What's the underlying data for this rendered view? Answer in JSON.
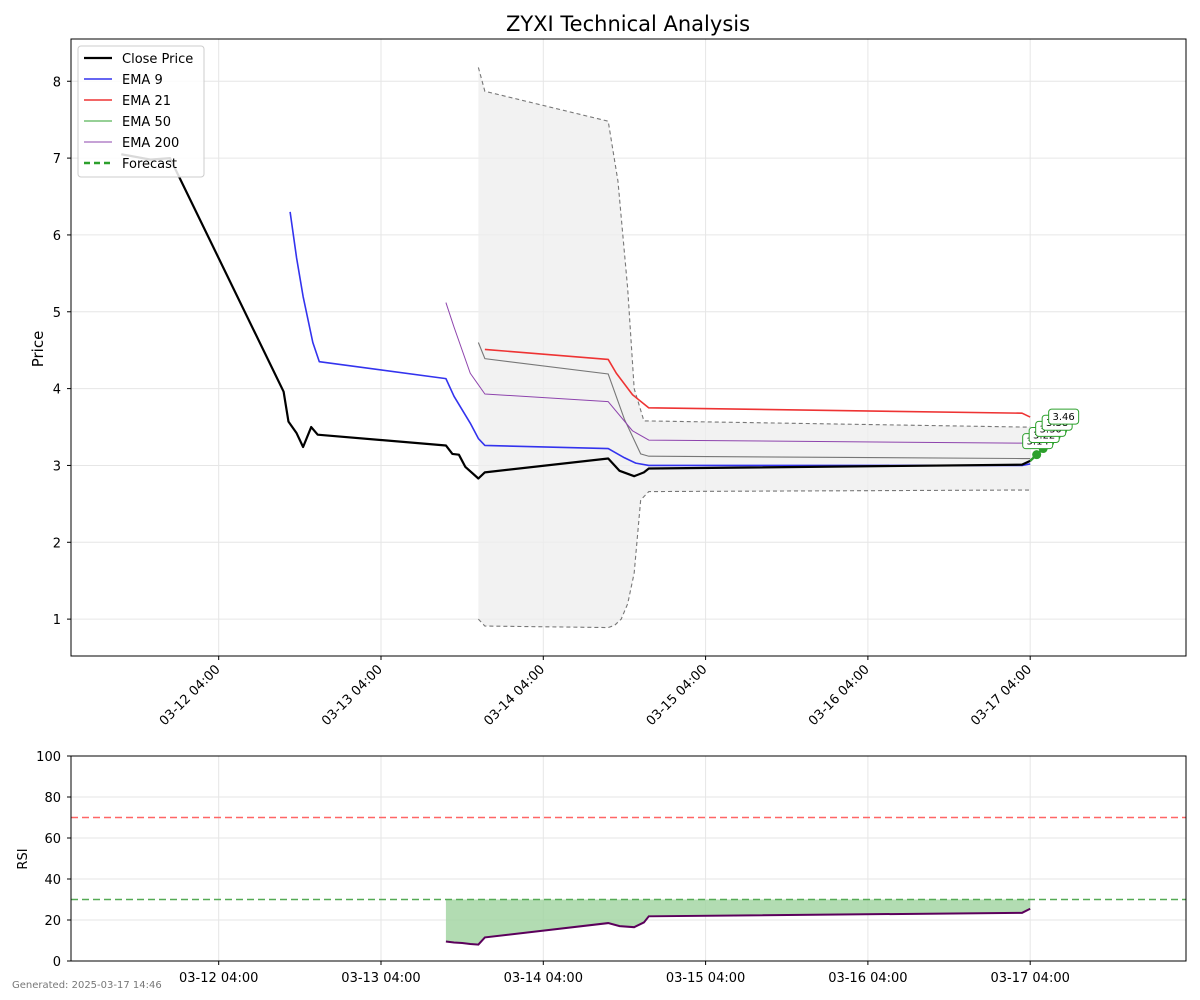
{
  "footer_text": "Generated: 2025-03-17 14:46",
  "colors": {
    "close": "#000000",
    "ema9": "#3333ee",
    "ema21": "#ee3333",
    "ema50": "#2ca02c",
    "ema200": "#8e44ad",
    "forecast": "#2ca02c",
    "band_fill": "#eeeeee",
    "band_line": "#777777",
    "rsi_line": "#5b005b",
    "rsi_fill": "#9fd39f",
    "overbought": "#ff6666",
    "oversold": "#55aa55"
  },
  "chart_data": [
    {
      "type": "line",
      "title": "ZYXI Technical Analysis",
      "ylabel": "Price",
      "xlabel": "",
      "xlim": [
        -0.91,
        5.96
      ],
      "ylim": [
        0.52,
        8.55
      ],
      "grid": true,
      "legend_position": "top-left",
      "x_ticks": [
        {
          "value": 0,
          "label": "03-12 04:00"
        },
        {
          "value": 1,
          "label": "03-13 04:00"
        },
        {
          "value": 2,
          "label": "03-14 04:00"
        },
        {
          "value": 3,
          "label": "03-15 04:00"
        },
        {
          "value": 4,
          "label": "03-16 04:00"
        },
        {
          "value": 5,
          "label": "03-17 04:00"
        }
      ],
      "y_ticks": [
        1,
        2,
        3,
        4,
        5,
        6,
        7,
        8
      ],
      "x_axis_note": "x values are days relative to 03-12 04:00",
      "series": [
        {
          "name": "Close Price",
          "key": "close",
          "width": 2.2,
          "points": [
            [
              -0.6,
              7.05
            ],
            [
              -0.42,
              6.98
            ],
            [
              -0.3,
              7.0
            ],
            [
              0.4,
              3.96
            ],
            [
              0.43,
              3.57
            ],
            [
              0.48,
              3.42
            ],
            [
              0.52,
              3.24
            ],
            [
              0.57,
              3.5
            ],
            [
              0.61,
              3.4
            ],
            [
              1.4,
              3.26
            ],
            [
              1.44,
              3.15
            ],
            [
              1.48,
              3.14
            ],
            [
              1.52,
              2.98
            ],
            [
              1.6,
              2.83
            ],
            [
              1.64,
              2.91
            ],
            [
              2.4,
              3.09
            ],
            [
              2.47,
              2.93
            ],
            [
              2.56,
              2.86
            ],
            [
              2.62,
              2.91
            ],
            [
              2.65,
              2.96
            ],
            [
              4.95,
              3.01
            ],
            [
              5.0,
              3.06
            ]
          ]
        },
        {
          "name": "EMA 9",
          "key": "ema9",
          "width": 1.6,
          "points": [
            [
              0.44,
              6.3
            ],
            [
              0.48,
              5.7
            ],
            [
              0.52,
              5.2
            ],
            [
              0.58,
              4.6
            ],
            [
              0.62,
              4.35
            ],
            [
              1.4,
              4.13
            ],
            [
              1.45,
              3.9
            ],
            [
              1.55,
              3.55
            ],
            [
              1.6,
              3.35
            ],
            [
              1.64,
              3.26
            ],
            [
              2.4,
              3.22
            ],
            [
              2.5,
              3.1
            ],
            [
              2.57,
              3.03
            ],
            [
              2.65,
              3.0
            ],
            [
              4.95,
              3.0
            ],
            [
              5.0,
              3.02
            ]
          ]
        },
        {
          "name": "EMA 21",
          "key": "ema21",
          "width": 1.6,
          "points": [
            [
              1.64,
              4.51
            ],
            [
              2.4,
              4.38
            ],
            [
              2.45,
              4.2
            ],
            [
              2.55,
              3.92
            ],
            [
              2.65,
              3.75
            ],
            [
              4.95,
              3.68
            ],
            [
              5.0,
              3.63
            ]
          ]
        },
        {
          "name": "EMA 50",
          "key": "ema50",
          "width": 1.0,
          "points": []
        },
        {
          "name": "EMA 200",
          "key": "ema200",
          "width": 1.0,
          "points": [
            [
              1.4,
              5.12
            ],
            [
              1.45,
              4.8
            ],
            [
              1.55,
              4.2
            ],
            [
              1.64,
              3.93
            ],
            [
              2.4,
              3.83
            ],
            [
              2.55,
              3.45
            ],
            [
              2.65,
              3.33
            ],
            [
              4.95,
              3.29
            ],
            [
              5.0,
              3.3
            ]
          ]
        },
        {
          "name": "Forecast",
          "key": "forecast",
          "width": 2.4,
          "dashed": true,
          "markers": true,
          "points": [
            [
              5.0,
              3.06
            ],
            [
              5.04,
              3.14
            ],
            [
              5.08,
              3.22
            ],
            [
              5.12,
              3.3
            ],
            [
              5.16,
              3.38
            ],
            [
              5.2,
              3.46
            ]
          ]
        }
      ],
      "forecast_labels": [
        "3.14",
        "3.22",
        "3.30",
        "3.38",
        "3.46"
      ],
      "band": {
        "upper": [
          [
            1.6,
            8.18
          ],
          [
            1.64,
            7.87
          ],
          [
            2.4,
            7.48
          ],
          [
            2.46,
            6.7
          ],
          [
            2.52,
            5.3
          ],
          [
            2.56,
            4.0
          ],
          [
            2.62,
            3.58
          ],
          [
            4.95,
            3.5
          ],
          [
            5.0,
            3.5
          ]
        ],
        "middle": [
          [
            1.6,
            4.6
          ],
          [
            1.64,
            4.39
          ],
          [
            2.4,
            4.19
          ],
          [
            2.5,
            3.6
          ],
          [
            2.6,
            3.15
          ],
          [
            2.65,
            3.12
          ],
          [
            4.95,
            3.09
          ],
          [
            5.0,
            3.09
          ]
        ],
        "lower": [
          [
            1.6,
            1.0
          ],
          [
            1.64,
            0.91
          ],
          [
            2.4,
            0.89
          ],
          [
            2.44,
            0.92
          ],
          [
            2.48,
            1.0
          ],
          [
            2.52,
            1.2
          ],
          [
            2.56,
            1.6
          ],
          [
            2.6,
            2.55
          ],
          [
            2.65,
            2.66
          ],
          [
            4.95,
            2.68
          ],
          [
            5.0,
            2.68
          ]
        ]
      }
    },
    {
      "type": "line",
      "title": "",
      "ylabel": "RSI",
      "xlabel": "",
      "xlim": [
        -0.91,
        5.96
      ],
      "ylim": [
        0,
        100
      ],
      "grid": true,
      "y_ticks": [
        0,
        20,
        40,
        60,
        80,
        100
      ],
      "x_ticks": [
        {
          "value": 0,
          "label": "03-12 04:00"
        },
        {
          "value": 1,
          "label": "03-13 04:00"
        },
        {
          "value": 2,
          "label": "03-14 04:00"
        },
        {
          "value": 3,
          "label": "03-15 04:00"
        },
        {
          "value": 4,
          "label": "03-16 04:00"
        },
        {
          "value": 5,
          "label": "03-17 04:00"
        }
      ],
      "overbought": 70,
      "oversold": 30,
      "series": [
        {
          "key": "rsi",
          "points": [
            [
              1.4,
              9.5
            ],
            [
              1.45,
              9.0
            ],
            [
              1.5,
              8.8
            ],
            [
              1.55,
              8.3
            ],
            [
              1.6,
              8.0
            ],
            [
              1.64,
              11.5
            ],
            [
              2.4,
              18.5
            ],
            [
              2.47,
              17.0
            ],
            [
              2.56,
              16.5
            ],
            [
              2.62,
              18.8
            ],
            [
              2.65,
              21.8
            ],
            [
              4.95,
              23.5
            ],
            [
              5.0,
              25.5
            ]
          ]
        }
      ]
    }
  ]
}
